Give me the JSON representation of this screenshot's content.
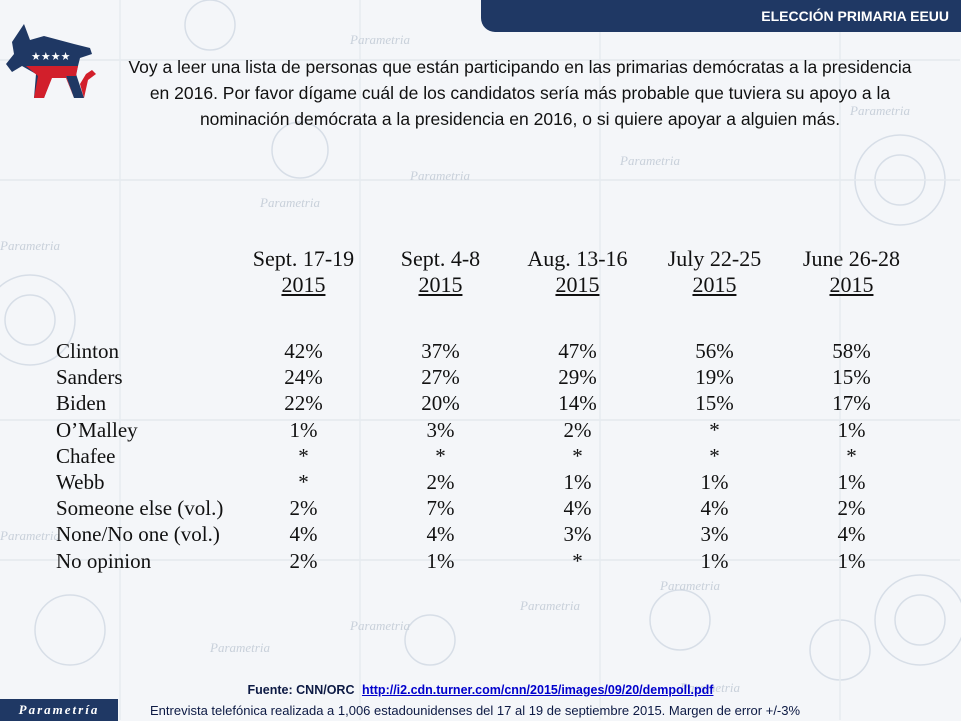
{
  "header": {
    "title": "ELECCIÓN PRIMARIA EEUU"
  },
  "logo": {
    "icon": "democratic-donkey-icon",
    "colors": {
      "blue": "#1f3864",
      "red": "#d21f2b"
    }
  },
  "question": "Voy a leer una lista de personas que están participando en las primarias demócratas a la presidencia en 2016. Por favor dígame cuál de los candidatos sería más probable que tuviera su apoyo a la nominación demócrata a la presidencia en 2016, o si quiere apoyar a alguien más.",
  "table": {
    "columns": [
      {
        "dates": "Sept. 17-19",
        "year": "2015"
      },
      {
        "dates": "Sept. 4-8",
        "year": "2015"
      },
      {
        "dates": "Aug. 13-16",
        "year": "2015"
      },
      {
        "dates": "July 22-25",
        "year": "2015"
      },
      {
        "dates": "June 26-28",
        "year": "2015"
      }
    ],
    "rows": [
      {
        "name": "Clinton",
        "values": [
          "42%",
          "37%",
          "47%",
          "56%",
          "58%"
        ]
      },
      {
        "name": "Sanders",
        "values": [
          "24%",
          "27%",
          "29%",
          "19%",
          "15%"
        ]
      },
      {
        "name": "Biden",
        "values": [
          "22%",
          "20%",
          "14%",
          "15%",
          "17%"
        ]
      },
      {
        "name": "O’Malley",
        "values": [
          "1%",
          "3%",
          "2%",
          "*",
          "1%"
        ]
      },
      {
        "name": "Chafee",
        "values": [
          "*",
          "*",
          "*",
          "*",
          "*"
        ]
      },
      {
        "name": "Webb",
        "values": [
          "*",
          "2%",
          "1%",
          "1%",
          "1%"
        ]
      },
      {
        "name": "Someone else (vol.)",
        "values": [
          "2%",
          "7%",
          "4%",
          "4%",
          "2%"
        ]
      },
      {
        "name": "None/No one (vol.)",
        "values": [
          "4%",
          "4%",
          "3%",
          "3%",
          "4%"
        ]
      },
      {
        "name": "No opinion",
        "values": [
          "2%",
          "1%",
          "*",
          "1%",
          "1%"
        ]
      }
    ]
  },
  "footer": {
    "source_label": "Fuente: CNN/ORC",
    "source_url": "http://i2.cdn.turner.com/cnn/2015/images/09/20/dempoll.pdf",
    "note": "Entrevista telefónica realizada a 1,006 estadounidenses del 17 al 19 de septiembre 2015. Margen de error +/-3%",
    "brand": "Parametría"
  }
}
